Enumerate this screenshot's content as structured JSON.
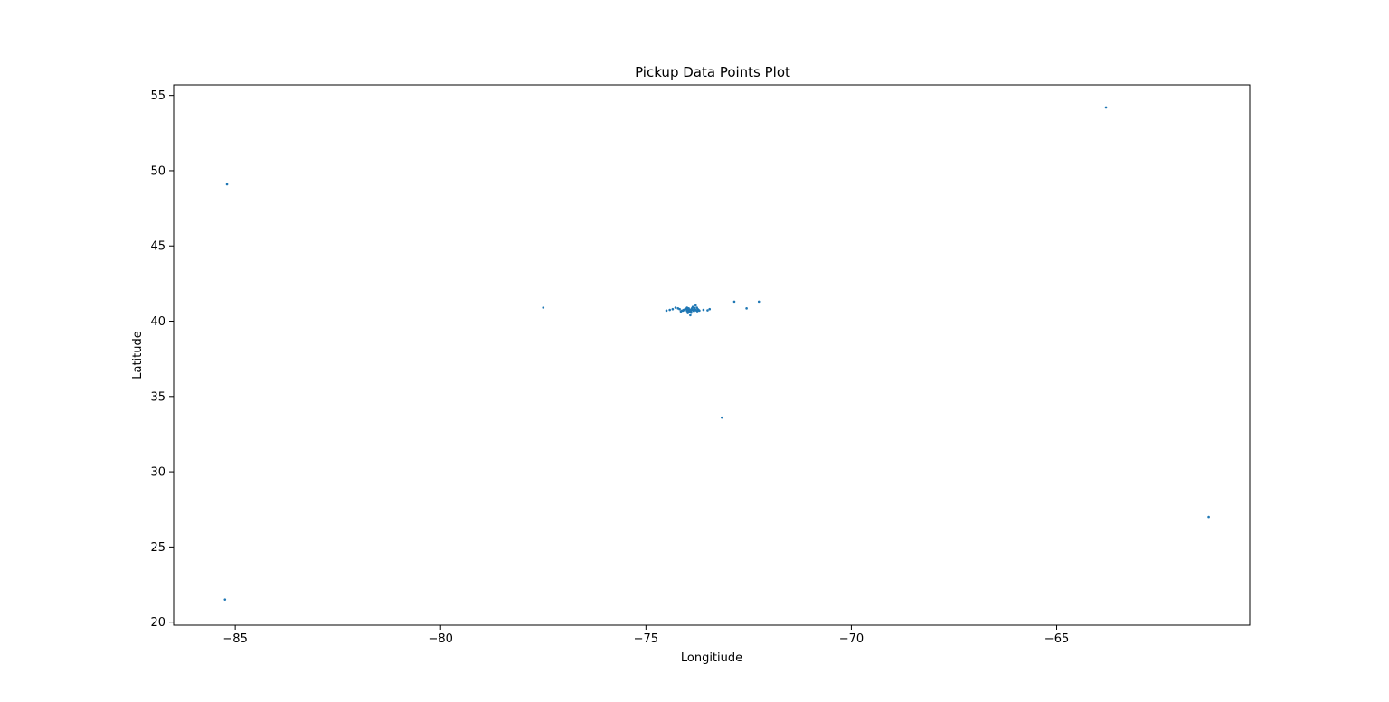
{
  "chart_data": {
    "type": "scatter",
    "title": "Pickup Data Points Plot",
    "xlabel": "Longitiude",
    "ylabel": "Latitude",
    "xlim": [
      -86.5,
      -60.3
    ],
    "ylim": [
      19.8,
      55.7
    ],
    "xticks": [
      -85,
      -80,
      -75,
      -70,
      -65
    ],
    "xtick_labels": [
      "−85",
      "−80",
      "−75",
      "−70",
      "−65"
    ],
    "yticks": [
      20,
      25,
      30,
      35,
      40,
      45,
      50,
      55
    ],
    "ytick_labels": [
      "20",
      "25",
      "30",
      "35",
      "40",
      "45",
      "50",
      "55"
    ],
    "grid": false,
    "legend": "none",
    "color": "#1f77b4",
    "series": [
      {
        "x": [
          -85.2,
          -85.25,
          -61.3,
          -63.8,
          -77.5,
          -73.15,
          -72.85,
          -72.55,
          -72.25,
          -74.5,
          -74.42,
          -74.35,
          -74.28,
          -74.22,
          -74.18,
          -74.15,
          -74.1,
          -74.06,
          -74.02,
          -73.99,
          -73.97,
          -73.95,
          -73.93,
          -73.91,
          -73.89,
          -73.87,
          -73.85,
          -73.83,
          -73.8,
          -73.78,
          -73.76,
          -73.74,
          -73.72,
          -73.7,
          -73.96,
          -73.94,
          -73.98,
          -74.0,
          -74.04,
          -73.9,
          -73.86,
          -73.82,
          -73.79,
          -73.75,
          -73.92,
          -74.08,
          -74.12,
          -73.6,
          -73.5,
          -73.45,
          -73.84,
          -73.88,
          -74.0,
          -73.97,
          -73.94,
          -73.91
        ],
        "y": [
          49.1,
          21.5,
          27.0,
          54.2,
          40.9,
          33.6,
          41.3,
          40.85,
          41.3,
          40.7,
          40.75,
          40.8,
          40.9,
          40.85,
          40.8,
          40.65,
          40.7,
          40.75,
          40.8,
          40.75,
          40.72,
          40.78,
          40.74,
          40.7,
          40.76,
          40.8,
          40.73,
          40.68,
          40.77,
          40.72,
          40.9,
          40.8,
          40.75,
          40.7,
          40.85,
          40.65,
          40.6,
          40.9,
          40.82,
          40.62,
          40.95,
          40.88,
          41.05,
          40.66,
          40.4,
          40.75,
          40.7,
          40.75,
          40.72,
          40.8,
          40.7,
          40.85,
          40.68,
          40.79,
          40.71,
          40.76
        ]
      }
    ]
  }
}
